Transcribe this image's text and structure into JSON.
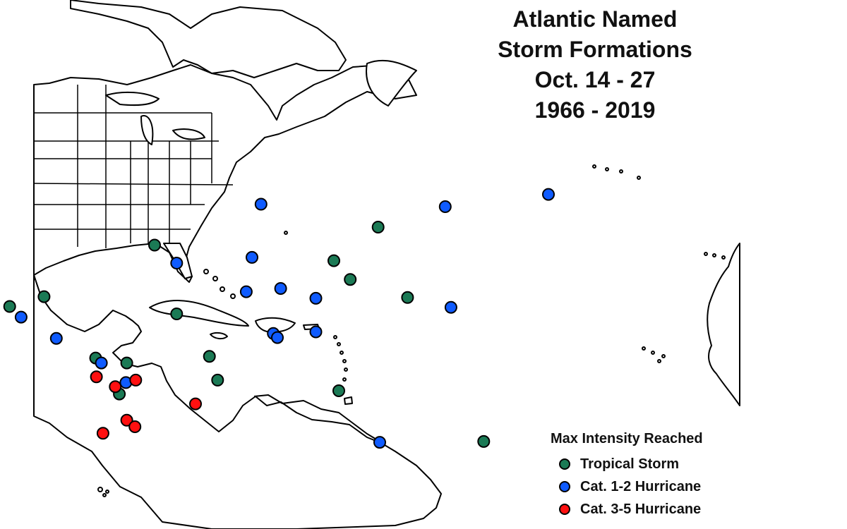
{
  "title": {
    "line1": "Atlantic Named",
    "line2": "Storm Formations",
    "line3": "Oct. 14 - 27",
    "line4": "1966 - 2019"
  },
  "legend": {
    "title": "Max Intensity Reached",
    "items": [
      {
        "key": "ts",
        "label": "Tropical Storm",
        "color": "#1b7a55"
      },
      {
        "key": "c12",
        "label": "Cat. 1-2 Hurricane",
        "color": "#0f5bff"
      },
      {
        "key": "c35",
        "label": "Cat. 3-5 Hurricane",
        "color": "#ff1010"
      }
    ]
  },
  "storms": [
    {
      "category": "ts",
      "lon": -77.5,
      "lat": 33.8
    },
    {
      "category": "ts",
      "lon": -95.2,
      "lat": 26.3
    },
    {
      "category": "ts",
      "lon": -91.0,
      "lat": 27.5
    },
    {
      "category": "ts",
      "lon": -74.8,
      "lat": 25.4
    },
    {
      "category": "ts",
      "lon": -70.8,
      "lat": 20.2
    },
    {
      "category": "ts",
      "lon": -84.7,
      "lat": 20.0
    },
    {
      "category": "ts",
      "lon": -80.9,
      "lat": 19.4
    },
    {
      "category": "ts",
      "lon": -69.8,
      "lat": 17.3
    },
    {
      "category": "ts",
      "lon": -81.8,
      "lat": 15.6
    },
    {
      "category": "ts",
      "lon": -50.2,
      "lat": 36.0
    },
    {
      "category": "ts",
      "lon": -55.6,
      "lat": 31.9
    },
    {
      "category": "ts",
      "lon": -53.6,
      "lat": 29.6
    },
    {
      "category": "ts",
      "lon": -46.6,
      "lat": 27.4
    },
    {
      "category": "ts",
      "lon": -55.0,
      "lat": 16.0
    },
    {
      "category": "ts",
      "lon": -37.3,
      "lat": 9.8
    },
    {
      "category": "c12",
      "lon": -64.5,
      "lat": 38.8
    },
    {
      "category": "c12",
      "lon": -42.0,
      "lat": 38.5
    },
    {
      "category": "c12",
      "lon": -29.4,
      "lat": 40.0
    },
    {
      "category": "c12",
      "lon": -65.6,
      "lat": 32.3
    },
    {
      "category": "c12",
      "lon": -74.8,
      "lat": 31.6
    },
    {
      "category": "c12",
      "lon": -66.3,
      "lat": 28.1
    },
    {
      "category": "c12",
      "lon": -62.1,
      "lat": 28.5
    },
    {
      "category": "c12",
      "lon": -57.8,
      "lat": 27.3
    },
    {
      "category": "c12",
      "lon": -41.3,
      "lat": 26.2
    },
    {
      "category": "c12",
      "lon": -93.8,
      "lat": 25.0
    },
    {
      "category": "c12",
      "lon": -89.5,
      "lat": 22.4
    },
    {
      "category": "c12",
      "lon": -63.0,
      "lat": 23.0
    },
    {
      "category": "c12",
      "lon": -62.5,
      "lat": 22.5
    },
    {
      "category": "c12",
      "lon": -57.8,
      "lat": 23.2
    },
    {
      "category": "c12",
      "lon": -84.0,
      "lat": 19.4
    },
    {
      "category": "c12",
      "lon": -81.0,
      "lat": 17.0
    },
    {
      "category": "c12",
      "lon": -50.0,
      "lat": 9.7
    },
    {
      "category": "c35",
      "lon": -84.6,
      "lat": 17.7
    },
    {
      "category": "c35",
      "lon": -82.3,
      "lat": 16.5
    },
    {
      "category": "c35",
      "lon": -79.8,
      "lat": 17.3
    },
    {
      "category": "c35",
      "lon": -72.5,
      "lat": 14.4
    },
    {
      "category": "c35",
      "lon": -80.9,
      "lat": 12.4
    },
    {
      "category": "c35",
      "lon": -79.9,
      "lat": 11.6
    },
    {
      "category": "c35",
      "lon": -83.8,
      "lat": 10.8
    }
  ]
}
